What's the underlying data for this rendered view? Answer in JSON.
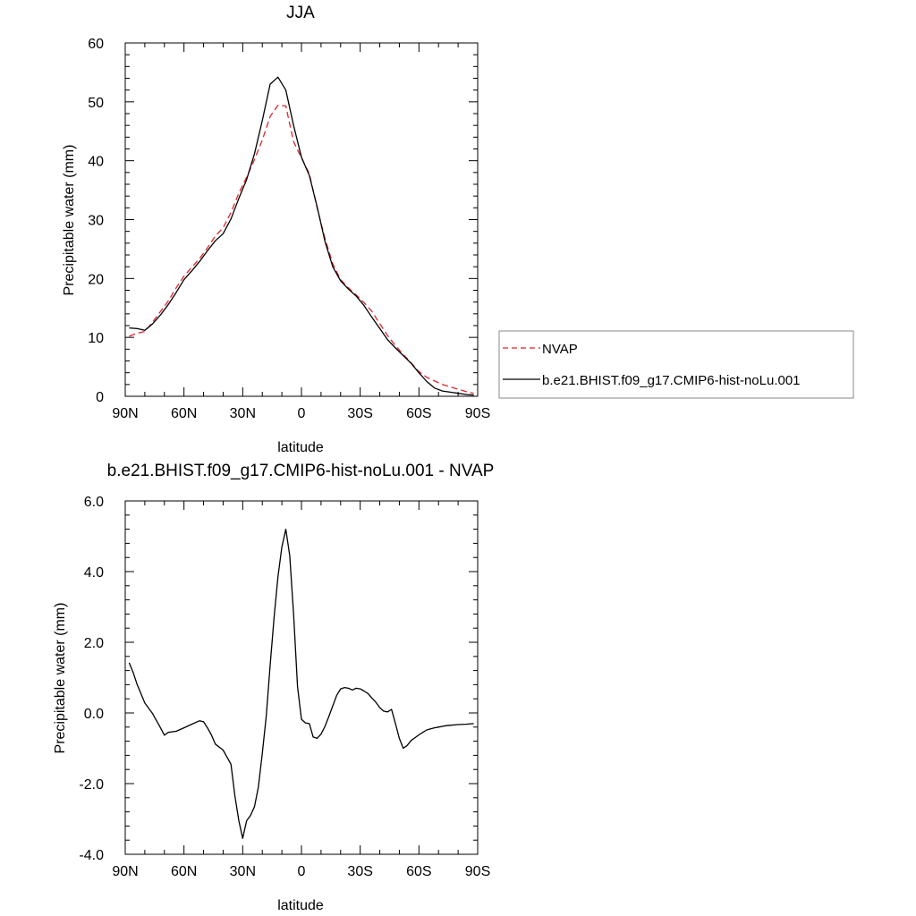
{
  "chart_data": [
    {
      "type": "line",
      "title": "JJA",
      "xlabel": "latitude",
      "ylabel": "Precipitable water (mm)",
      "xlim": [
        90,
        -90
      ],
      "ylim": [
        0,
        60
      ],
      "x_ticks": [
        90,
        60,
        30,
        0,
        -30,
        -60,
        -90
      ],
      "x_tick_labels": [
        "90N",
        "60N",
        "30N",
        "0",
        "30S",
        "60S",
        "90S"
      ],
      "y_ticks": [
        0,
        10,
        20,
        30,
        40,
        50,
        60
      ],
      "y_tick_labels": [
        "0",
        "10",
        "20",
        "30",
        "40",
        "50",
        "60"
      ],
      "legend_position": "right",
      "series": [
        {
          "name": "NVAP",
          "color": "#e0242b",
          "dash": "dashed",
          "x": [
            88,
            84,
            80,
            76,
            72,
            68,
            64,
            60,
            56,
            52,
            48,
            44,
            40,
            36,
            32,
            28,
            24,
            20,
            16,
            12,
            8,
            4,
            0,
            -4,
            -8,
            -12,
            -16,
            -20,
            -24,
            -28,
            -32,
            -36,
            -40,
            -44,
            -48,
            -52,
            -56,
            -60,
            -64,
            -68,
            -72,
            -76,
            -80,
            -84,
            -88
          ],
          "values": [
            10.2,
            10.7,
            11.0,
            12.6,
            14.4,
            16.2,
            18.4,
            20.4,
            21.9,
            23.4,
            25.2,
            27.2,
            28.6,
            31.2,
            34.5,
            37.2,
            40.2,
            43.5,
            47.5,
            49.4,
            49.3,
            43.2,
            40.5,
            37.8,
            32.0,
            26.8,
            22.5,
            19.8,
            18.4,
            17.2,
            15.9,
            14.4,
            12.3,
            10.3,
            8.6,
            7.1,
            5.7,
            4.2,
            3.2,
            2.6,
            2.0,
            1.6,
            1.2,
            0.8,
            0.5
          ]
        },
        {
          "name": "b.e21.BHIST.f09_g17.CMIP6-hist-noLu.001",
          "color": "#000000",
          "dash": "solid",
          "x": [
            88,
            84,
            80,
            76,
            72,
            68,
            64,
            60,
            56,
            52,
            48,
            44,
            40,
            36,
            32,
            28,
            24,
            20,
            16,
            12,
            8,
            4,
            0,
            -4,
            -8,
            -12,
            -16,
            -20,
            -24,
            -28,
            -32,
            -36,
            -40,
            -44,
            -48,
            -52,
            -56,
            -60,
            -64,
            -68,
            -72,
            -76,
            -80,
            -84,
            -88
          ],
          "values": [
            11.6,
            11.5,
            11.2,
            12.3,
            13.8,
            15.6,
            17.6,
            19.8,
            21.3,
            22.9,
            24.7,
            26.4,
            27.6,
            30.1,
            33.6,
            36.8,
            41.2,
            46.8,
            53.0,
            54.2,
            52.0,
            46.0,
            40.6,
            37.5,
            32.2,
            26.3,
            22.0,
            19.6,
            18.2,
            17.0,
            15.4,
            13.4,
            11.5,
            9.6,
            8.2,
            6.9,
            5.6,
            4.0,
            2.5,
            1.4,
            0.9,
            0.7,
            0.5,
            0.3,
            0.2
          ]
        }
      ]
    },
    {
      "type": "line",
      "title": "b.e21.BHIST.f09_g17.CMIP6-hist-noLu.001 - NVAP",
      "xlabel": "latitude",
      "ylabel": "Precipitable water (mm)",
      "xlim": [
        90,
        -90
      ],
      "ylim": [
        -4,
        6
      ],
      "x_ticks": [
        90,
        60,
        30,
        0,
        -30,
        -60,
        -90
      ],
      "x_tick_labels": [
        "90N",
        "60N",
        "30N",
        "0",
        "30S",
        "60S",
        "90S"
      ],
      "y_ticks": [
        -4,
        -2,
        0,
        2,
        4,
        6
      ],
      "y_tick_labels": [
        "-4.0",
        "-2.0",
        "0.0",
        "2.0",
        "4.0",
        "6.0"
      ],
      "series": [
        {
          "color": "#000000",
          "dash": "solid",
          "x": [
            88,
            86,
            84,
            80,
            76,
            72,
            70,
            68,
            64,
            60,
            56,
            52,
            50,
            48,
            46,
            44,
            40,
            36,
            34,
            32,
            30,
            28,
            26,
            24,
            22,
            20,
            18,
            16,
            14,
            12,
            10,
            8,
            6,
            4,
            2,
            0,
            -2,
            -4,
            -6,
            -8,
            -10,
            -12,
            -14,
            -16,
            -18,
            -20,
            -22,
            -24,
            -26,
            -28,
            -30,
            -32,
            -34,
            -36,
            -38,
            -40,
            -42,
            -44,
            -46,
            -48,
            -50,
            -52,
            -54,
            -56,
            -58,
            -60,
            -62,
            -64,
            -66,
            -68,
            -70,
            -72,
            -74,
            -76,
            -78,
            -80,
            -84,
            -88
          ],
          "values": [
            1.42,
            1.15,
            0.82,
            0.28,
            -0.02,
            -0.42,
            -0.63,
            -0.55,
            -0.52,
            -0.42,
            -0.32,
            -0.22,
            -0.25,
            -0.42,
            -0.62,
            -0.88,
            -1.05,
            -1.45,
            -2.35,
            -3.05,
            -3.55,
            -3.05,
            -2.9,
            -2.65,
            -2.1,
            -1.15,
            -0.1,
            1.35,
            2.7,
            3.85,
            4.7,
            5.2,
            4.45,
            2.8,
            0.75,
            -0.18,
            -0.28,
            -0.3,
            -0.68,
            -0.72,
            -0.6,
            -0.38,
            -0.1,
            0.2,
            0.5,
            0.68,
            0.72,
            0.7,
            0.65,
            0.7,
            0.68,
            0.62,
            0.55,
            0.42,
            0.3,
            0.15,
            0.05,
            0.03,
            0.1,
            -0.3,
            -0.72,
            -1.0,
            -0.92,
            -0.78,
            -0.7,
            -0.62,
            -0.55,
            -0.48,
            -0.45,
            -0.42,
            -0.4,
            -0.38,
            -0.36,
            -0.35,
            -0.34,
            -0.33,
            -0.32,
            -0.3
          ]
        }
      ]
    }
  ]
}
